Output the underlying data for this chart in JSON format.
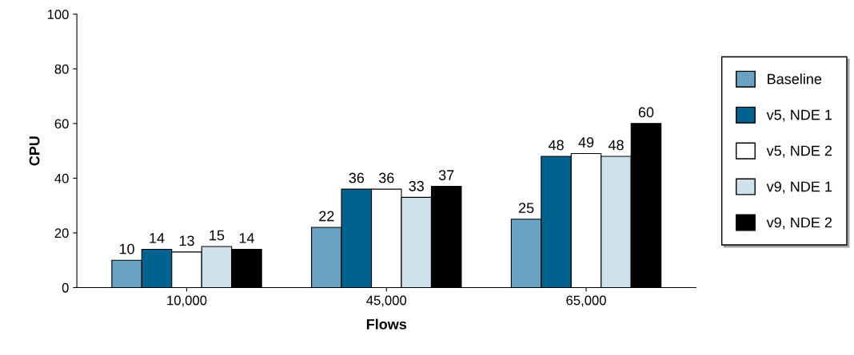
{
  "chart_data": {
    "type": "bar",
    "xlabel": "Flows",
    "ylabel": "CPU",
    "categories": [
      "10,000",
      "45,000",
      "65,000"
    ],
    "series": [
      {
        "name": "Baseline",
        "color": "#6aa2c3",
        "values": [
          10,
          22,
          25
        ]
      },
      {
        "name": "v5, NDE 1",
        "color": "#00628f",
        "values": [
          14,
          36,
          48
        ]
      },
      {
        "name": "v5, NDE 2",
        "color": "#ffffff",
        "values": [
          13,
          36,
          49
        ]
      },
      {
        "name": "v9, NDE 1",
        "color": "#cfe1ec",
        "values": [
          15,
          33,
          48
        ]
      },
      {
        "name": "v9, NDE 2",
        "color": "#000000",
        "values": [
          14,
          37,
          60
        ]
      }
    ],
    "ylim": [
      0,
      100
    ],
    "yticks": [
      0,
      20,
      40,
      60,
      80,
      100
    ],
    "grid": false,
    "legend": "right",
    "data_labels": true
  }
}
